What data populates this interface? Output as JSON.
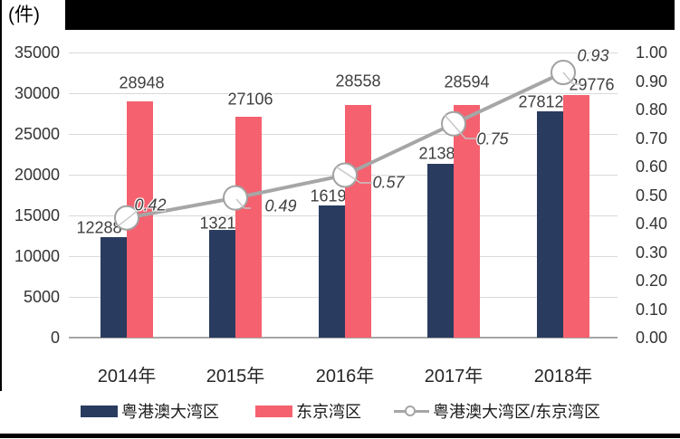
{
  "header": {
    "unit_label": "(件)"
  },
  "chart_data": {
    "type": "combo-bar-line",
    "categories": [
      "2014年",
      "2015年",
      "2016年",
      "2017年",
      "2018年"
    ],
    "series": [
      {
        "name": "粤港澳大湾区",
        "type": "bar",
        "axis": "left",
        "color": "#293B5F",
        "values": [
          12288,
          13213,
          16198,
          21386,
          27812
        ]
      },
      {
        "name": "东京湾区",
        "type": "bar",
        "axis": "left",
        "color": "#F5616F",
        "values": [
          28948,
          27106,
          28558,
          28594,
          29776
        ]
      },
      {
        "name": "粤港澳大湾区/东京湾区",
        "type": "line",
        "axis": "right",
        "color": "#A6A6A6",
        "values": [
          0.42,
          0.49,
          0.57,
          0.75,
          0.93
        ]
      }
    ],
    "left_axis": {
      "unit": "件",
      "min": 0,
      "max": 35000,
      "step": 5000,
      "tick_labels": [
        "35000",
        "30000",
        "25000",
        "20000",
        "15000",
        "10000",
        "5000",
        "0"
      ]
    },
    "right_axis": {
      "min": 0.0,
      "max": 1.0,
      "step": 0.1,
      "tick_labels": [
        "1.00",
        "0.90",
        "0.80",
        "0.70",
        "0.60",
        "0.50",
        "0.40",
        "0.30",
        "0.20",
        "0.10",
        "0.00"
      ]
    },
    "grid": "horizontal",
    "legend_position": "bottom",
    "marker_style": "open-circle",
    "line_color": "#A6A6A6",
    "gridline_color": "#D9D9D9"
  },
  "legend": {
    "items": [
      {
        "label": "粤港澳大湾区",
        "swatch": "bar",
        "color": "#293B5F"
      },
      {
        "label": "东京湾区",
        "swatch": "bar",
        "color": "#F5616F"
      },
      {
        "label": "粤港澳大湾区/东京湾区",
        "swatch": "line-marker",
        "color": "#A6A6A6"
      }
    ]
  }
}
